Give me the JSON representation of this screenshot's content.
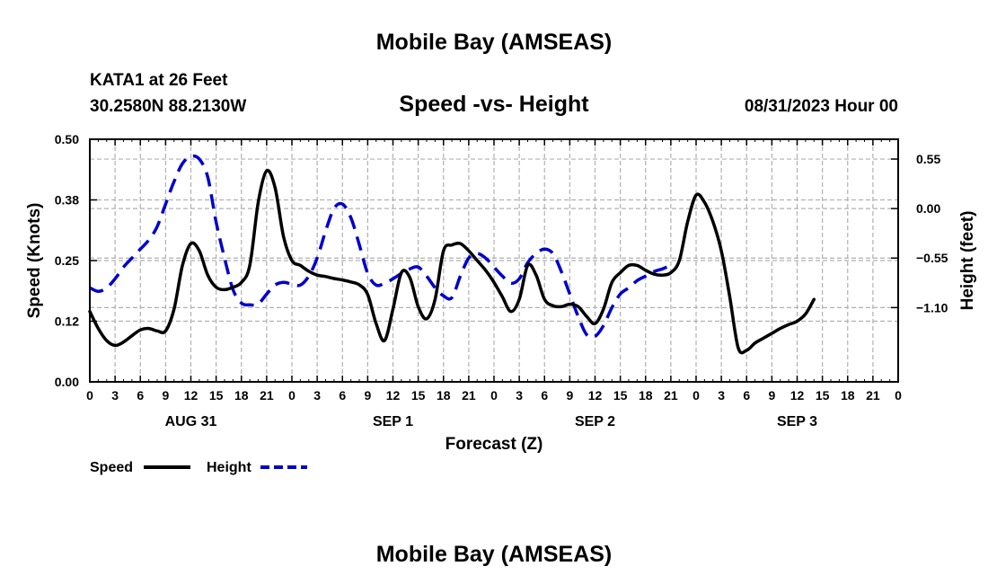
{
  "chart_data": {
    "type": "line",
    "title": "Mobile Bay (AMSEAS)",
    "footer_title": "Mobile Bay (AMSEAS)",
    "station": "KATA1 at 26 Feet",
    "coords": "30.2580N  88.2130W",
    "subtitle": "Speed -vs- Height",
    "run": "08/31/2023 Hour 00",
    "xlabel": "Forecast (Z)",
    "ylabel_left": "Speed (Knots)",
    "ylabel_right": "Height (feet)",
    "x_range": [
      0,
      96
    ],
    "x_tick_labels": [
      "0",
      "3",
      "6",
      "9",
      "12",
      "15",
      "18",
      "21",
      "0",
      "3",
      "6",
      "9",
      "12",
      "15",
      "18",
      "21",
      "0",
      "3",
      "6",
      "9",
      "12",
      "15",
      "18",
      "21",
      "0",
      "3",
      "6",
      "9",
      "12",
      "15",
      "18",
      "21",
      "0"
    ],
    "day_labels": [
      {
        "hour": 12,
        "label": "AUG 31"
      },
      {
        "hour": 36,
        "label": "SEP 1"
      },
      {
        "hour": 60,
        "label": "SEP 2"
      },
      {
        "hour": 84,
        "label": "SEP 3"
      }
    ],
    "ylim_left": [
      0,
      0.5
    ],
    "yticks_left": [
      "0.00",
      "0.12",
      "0.25",
      "0.38",
      "0.50"
    ],
    "ylim_right": [
      -1.925,
      0.77
    ],
    "yticks_right": [
      {
        "value": 0.55,
        "label": "0.55"
      },
      {
        "value": 0.0,
        "label": "0.00"
      },
      {
        "value": -0.55,
        "label": "−0.55"
      },
      {
        "value": -1.1,
        "label": "−1.10"
      }
    ],
    "series": [
      {
        "name": "Speed",
        "axis": "left",
        "color": "#000000",
        "style": "solid",
        "points": [
          [
            0,
            0.145
          ],
          [
            1,
            0.11
          ],
          [
            2,
            0.085
          ],
          [
            3,
            0.075
          ],
          [
            4,
            0.082
          ],
          [
            5,
            0.095
          ],
          [
            6,
            0.107
          ],
          [
            7,
            0.11
          ],
          [
            8,
            0.105
          ],
          [
            9,
            0.105
          ],
          [
            10,
            0.15
          ],
          [
            11,
            0.24
          ],
          [
            12,
            0.285
          ],
          [
            13,
            0.27
          ],
          [
            14,
            0.22
          ],
          [
            15,
            0.195
          ],
          [
            16,
            0.19
          ],
          [
            17,
            0.195
          ],
          [
            18,
            0.205
          ],
          [
            19,
            0.24
          ],
          [
            20,
            0.37
          ],
          [
            21,
            0.435
          ],
          [
            22,
            0.4
          ],
          [
            23,
            0.3
          ],
          [
            24,
            0.25
          ],
          [
            25,
            0.24
          ],
          [
            26,
            0.228
          ],
          [
            27,
            0.22
          ],
          [
            28,
            0.217
          ],
          [
            29,
            0.213
          ],
          [
            30,
            0.21
          ],
          [
            31,
            0.206
          ],
          [
            32,
            0.2
          ],
          [
            33,
            0.18
          ],
          [
            34,
            0.12
          ],
          [
            35,
            0.085
          ],
          [
            36,
            0.15
          ],
          [
            37,
            0.225
          ],
          [
            38,
            0.215
          ],
          [
            39,
            0.155
          ],
          [
            40,
            0.13
          ],
          [
            41,
            0.17
          ],
          [
            42,
            0.27
          ],
          [
            43,
            0.282
          ],
          [
            44,
            0.285
          ],
          [
            45,
            0.27
          ],
          [
            46,
            0.25
          ],
          [
            47,
            0.23
          ],
          [
            48,
            0.205
          ],
          [
            49,
            0.175
          ],
          [
            50,
            0.145
          ],
          [
            51,
            0.17
          ],
          [
            52,
            0.24
          ],
          [
            53,
            0.22
          ],
          [
            54,
            0.17
          ],
          [
            55,
            0.157
          ],
          [
            56,
            0.155
          ],
          [
            57,
            0.16
          ],
          [
            58,
            0.155
          ],
          [
            59,
            0.135
          ],
          [
            60,
            0.12
          ],
          [
            61,
            0.15
          ],
          [
            62,
            0.205
          ],
          [
            63,
            0.225
          ],
          [
            64,
            0.24
          ],
          [
            65,
            0.24
          ],
          [
            66,
            0.23
          ],
          [
            67,
            0.222
          ],
          [
            68,
            0.22
          ],
          [
            69,
            0.225
          ],
          [
            70,
            0.25
          ],
          [
            71,
            0.33
          ],
          [
            72,
            0.385
          ],
          [
            73,
            0.37
          ],
          [
            74,
            0.33
          ],
          [
            75,
            0.27
          ],
          [
            76,
            0.175
          ],
          [
            77,
            0.07
          ],
          [
            78,
            0.065
          ],
          [
            79,
            0.08
          ],
          [
            80,
            0.09
          ],
          [
            81,
            0.1
          ],
          [
            82,
            0.11
          ],
          [
            83,
            0.118
          ],
          [
            84,
            0.125
          ],
          [
            85,
            0.14
          ],
          [
            86,
            0.17
          ]
        ]
      },
      {
        "name": "Height",
        "axis": "right",
        "color": "#0000cc",
        "style": "dashed",
        "points": [
          [
            0,
            -0.88
          ],
          [
            1,
            -0.92
          ],
          [
            2,
            -0.88
          ],
          [
            3,
            -0.78
          ],
          [
            4,
            -0.65
          ],
          [
            5,
            -0.55
          ],
          [
            6,
            -0.45
          ],
          [
            7,
            -0.35
          ],
          [
            8,
            -0.2
          ],
          [
            9,
            0.05
          ],
          [
            10,
            0.3
          ],
          [
            11,
            0.5
          ],
          [
            12,
            0.58
          ],
          [
            13,
            0.55
          ],
          [
            14,
            0.35
          ],
          [
            15,
            -0.15
          ],
          [
            16,
            -0.55
          ],
          [
            17,
            -0.9
          ],
          [
            18,
            -1.05
          ],
          [
            19,
            -1.07
          ],
          [
            20,
            -1.06
          ],
          [
            21,
            -0.95
          ],
          [
            22,
            -0.85
          ],
          [
            23,
            -0.82
          ],
          [
            24,
            -0.84
          ],
          [
            25,
            -0.85
          ],
          [
            26,
            -0.75
          ],
          [
            27,
            -0.55
          ],
          [
            28,
            -0.25
          ],
          [
            29,
            0.0
          ],
          [
            30,
            0.05
          ],
          [
            31,
            -0.1
          ],
          [
            32,
            -0.4
          ],
          [
            33,
            -0.72
          ],
          [
            34,
            -0.85
          ],
          [
            35,
            -0.83
          ],
          [
            36,
            -0.78
          ],
          [
            37,
            -0.72
          ],
          [
            38,
            -0.67
          ],
          [
            39,
            -0.65
          ],
          [
            40,
            -0.75
          ],
          [
            41,
            -0.88
          ],
          [
            42,
            -0.97
          ],
          [
            43,
            -0.99
          ],
          [
            44,
            -0.75
          ],
          [
            45,
            -0.55
          ],
          [
            46,
            -0.5
          ],
          [
            47,
            -0.55
          ],
          [
            48,
            -0.65
          ],
          [
            49,
            -0.75
          ],
          [
            50,
            -0.83
          ],
          [
            51,
            -0.78
          ],
          [
            52,
            -0.6
          ],
          [
            53,
            -0.5
          ],
          [
            54,
            -0.45
          ],
          [
            55,
            -0.5
          ],
          [
            56,
            -0.7
          ],
          [
            57,
            -0.95
          ],
          [
            58,
            -1.2
          ],
          [
            59,
            -1.4
          ],
          [
            60,
            -1.42
          ],
          [
            61,
            -1.3
          ],
          [
            62,
            -1.1
          ],
          [
            63,
            -0.95
          ],
          [
            64,
            -0.88
          ],
          [
            65,
            -0.8
          ],
          [
            66,
            -0.75
          ],
          [
            67,
            -0.7
          ],
          [
            68,
            -0.67
          ],
          [
            69,
            -0.63
          ]
        ]
      }
    ],
    "legend": [
      {
        "label": "Speed",
        "color": "#000000",
        "style": "solid"
      },
      {
        "label": "Height",
        "color": "#0000cc",
        "style": "dashed"
      }
    ]
  }
}
